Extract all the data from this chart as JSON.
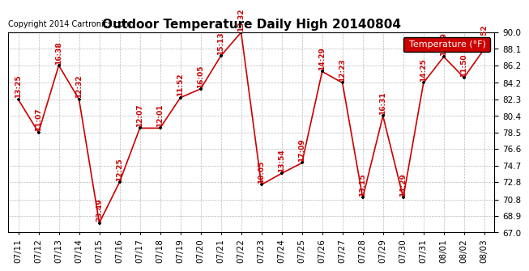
{
  "title": "Outdoor Temperature Daily High 20140804",
  "copyright": "Copyright 2014 Cartronics.com",
  "legend_label": "Temperature (°F)",
  "ylim": [
    67.0,
    90.0
  ],
  "yticks": [
    67.0,
    68.9,
    70.8,
    72.8,
    74.7,
    76.6,
    78.5,
    80.4,
    82.3,
    84.2,
    86.2,
    88.1,
    90.0
  ],
  "dates": [
    "07/11",
    "07/12",
    "07/13",
    "07/14",
    "07/15",
    "07/16",
    "07/17",
    "07/18",
    "07/19",
    "07/20",
    "07/21",
    "07/22",
    "07/23",
    "07/24",
    "07/25",
    "07/26",
    "07/27",
    "07/28",
    "07/29",
    "07/30",
    "07/31",
    "08/01",
    "08/02",
    "08/03"
  ],
  "temperatures": [
    82.3,
    78.5,
    86.2,
    82.3,
    68.1,
    72.8,
    79.0,
    79.0,
    82.5,
    83.5,
    87.3,
    90.0,
    72.5,
    73.8,
    75.0,
    85.5,
    84.2,
    71.0,
    80.4,
    71.0,
    84.2,
    87.2,
    84.8,
    88.1
  ],
  "labels": [
    "13:25",
    "11:07",
    "16:38",
    "12:32",
    "23:49",
    "12:25",
    "12:07",
    "12:01",
    "11:52",
    "16:05",
    "15:13",
    "13:32",
    "10:05",
    "13:54",
    "17:09",
    "14:29",
    "12:23",
    "13:15",
    "16:31",
    "14:29",
    "14:25",
    "14:49",
    "11:50",
    "15:52"
  ],
  "line_color": "#cc0000",
  "marker_color": "#000000",
  "bg_color": "#ffffff",
  "grid_color": "#bbbbbb",
  "label_color": "#cc0000",
  "legend_bg": "#cc0000",
  "legend_fg": "#ffffff",
  "title_fontsize": 11,
  "tick_fontsize": 7.5,
  "label_fontsize": 6.5,
  "copyright_fontsize": 7
}
